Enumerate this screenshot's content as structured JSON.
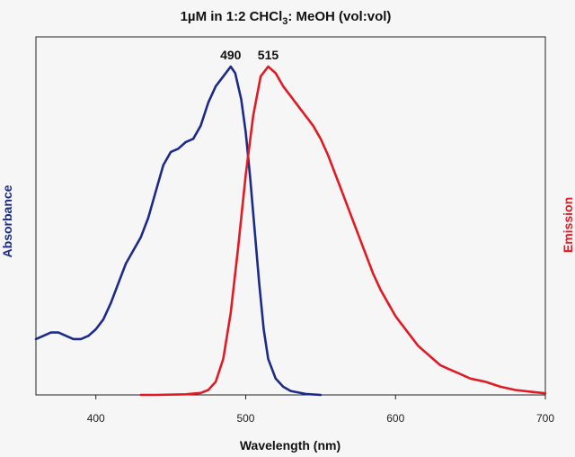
{
  "chart_data": {
    "type": "line",
    "title": {
      "before": "1µM in 1:2 CHCl",
      "subscript": "3",
      "after": ": MeOH (vol:vol)"
    },
    "xlabel": "Wavelength (nm)",
    "ylabel_left": "Absorbance",
    "ylabel_right": "Emission",
    "xlim": [
      360,
      700
    ],
    "ylim": [
      0,
      1
    ],
    "x_ticks": [
      400,
      500,
      600,
      700
    ],
    "grid": false,
    "legend": "none",
    "peak_labels": [
      {
        "text": "490",
        "x": 490,
        "y": 1.0
      },
      {
        "text": "515",
        "x": 515,
        "y": 1.0
      }
    ],
    "series": [
      {
        "axis": "left",
        "color": "#1c2a8a",
        "points": [
          [
            360,
            0.17
          ],
          [
            365,
            0.18
          ],
          [
            370,
            0.19
          ],
          [
            375,
            0.19
          ],
          [
            380,
            0.18
          ],
          [
            385,
            0.17
          ],
          [
            390,
            0.17
          ],
          [
            395,
            0.18
          ],
          [
            400,
            0.2
          ],
          [
            405,
            0.23
          ],
          [
            410,
            0.28
          ],
          [
            415,
            0.34
          ],
          [
            420,
            0.4
          ],
          [
            425,
            0.44
          ],
          [
            430,
            0.48
          ],
          [
            435,
            0.54
          ],
          [
            440,
            0.62
          ],
          [
            445,
            0.7
          ],
          [
            450,
            0.74
          ],
          [
            455,
            0.75
          ],
          [
            460,
            0.77
          ],
          [
            465,
            0.78
          ],
          [
            470,
            0.82
          ],
          [
            475,
            0.89
          ],
          [
            480,
            0.94
          ],
          [
            485,
            0.97
          ],
          [
            490,
            1.0
          ],
          [
            493,
            0.98
          ],
          [
            497,
            0.9
          ],
          [
            500,
            0.8
          ],
          [
            503,
            0.66
          ],
          [
            506,
            0.5
          ],
          [
            509,
            0.34
          ],
          [
            512,
            0.2
          ],
          [
            515,
            0.11
          ],
          [
            520,
            0.05
          ],
          [
            525,
            0.025
          ],
          [
            530,
            0.012
          ],
          [
            540,
            0.003
          ],
          [
            550,
            0.0
          ]
        ]
      },
      {
        "axis": "right",
        "color": "#e01b24",
        "points": [
          [
            430,
            0.0
          ],
          [
            440,
            0.0
          ],
          [
            460,
            0.002
          ],
          [
            470,
            0.006
          ],
          [
            475,
            0.015
          ],
          [
            480,
            0.04
          ],
          [
            485,
            0.11
          ],
          [
            490,
            0.25
          ],
          [
            495,
            0.45
          ],
          [
            500,
            0.67
          ],
          [
            505,
            0.85
          ],
          [
            510,
            0.97
          ],
          [
            515,
            1.0
          ],
          [
            520,
            0.98
          ],
          [
            525,
            0.94
          ],
          [
            530,
            0.91
          ],
          [
            535,
            0.88
          ],
          [
            540,
            0.85
          ],
          [
            545,
            0.82
          ],
          [
            550,
            0.78
          ],
          [
            555,
            0.73
          ],
          [
            560,
            0.67
          ],
          [
            565,
            0.61
          ],
          [
            570,
            0.55
          ],
          [
            575,
            0.49
          ],
          [
            580,
            0.43
          ],
          [
            585,
            0.37
          ],
          [
            590,
            0.32
          ],
          [
            595,
            0.28
          ],
          [
            600,
            0.24
          ],
          [
            605,
            0.21
          ],
          [
            610,
            0.18
          ],
          [
            615,
            0.15
          ],
          [
            620,
            0.13
          ],
          [
            625,
            0.11
          ],
          [
            630,
            0.09
          ],
          [
            635,
            0.08
          ],
          [
            640,
            0.07
          ],
          [
            650,
            0.05
          ],
          [
            660,
            0.04
          ],
          [
            670,
            0.025
          ],
          [
            680,
            0.015
          ],
          [
            690,
            0.01
          ],
          [
            700,
            0.005
          ]
        ]
      }
    ]
  }
}
